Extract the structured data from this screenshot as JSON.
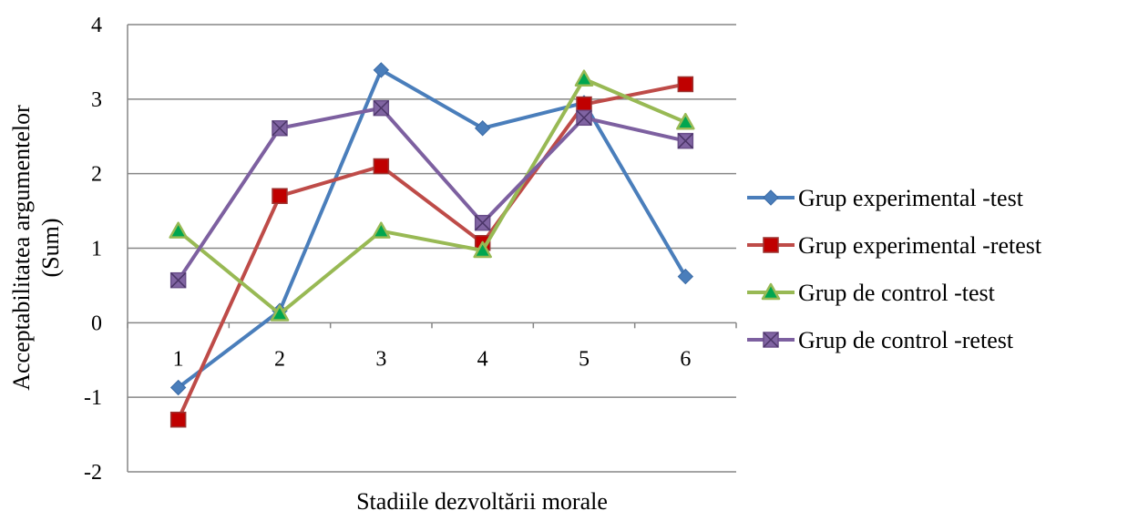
{
  "chart_data": {
    "type": "line",
    "title": "",
    "xlabel": "Stadiile dezvoltării morale",
    "ylabel": "Acceptabilitatea argumentelor (Sum)",
    "ylabel_lines": [
      "Acceptabilitatea argumentelor",
      "(Sum)"
    ],
    "categories": [
      "1",
      "2",
      "3",
      "4",
      "5",
      "6"
    ],
    "ylim": [
      -2,
      4
    ],
    "yticks": [
      "-2",
      "-1",
      "0",
      "1",
      "2",
      "3",
      "4"
    ],
    "grid": true,
    "legend_position": "right",
    "series": [
      {
        "name": "Grup experimental -test",
        "color": "#4a7ebb",
        "marker": "diamond",
        "values": [
          -0.87,
          0.16,
          3.39,
          2.61,
          2.95,
          0.62
        ]
      },
      {
        "name": "Grup experimental -retest",
        "color": "#be4b48",
        "marker": "square",
        "values": [
          -1.3,
          1.7,
          2.1,
          1.07,
          2.93,
          3.2
        ]
      },
      {
        "name": "Grup de control -test",
        "color": "#98b954",
        "marker": "triangle",
        "values": [
          1.23,
          0.12,
          1.23,
          0.97,
          3.27,
          2.69
        ]
      },
      {
        "name": "Grup de control -retest",
        "color": "#7d60a0",
        "marker": "square-x",
        "values": [
          0.57,
          2.61,
          2.88,
          1.34,
          2.75,
          2.44
        ]
      }
    ]
  }
}
